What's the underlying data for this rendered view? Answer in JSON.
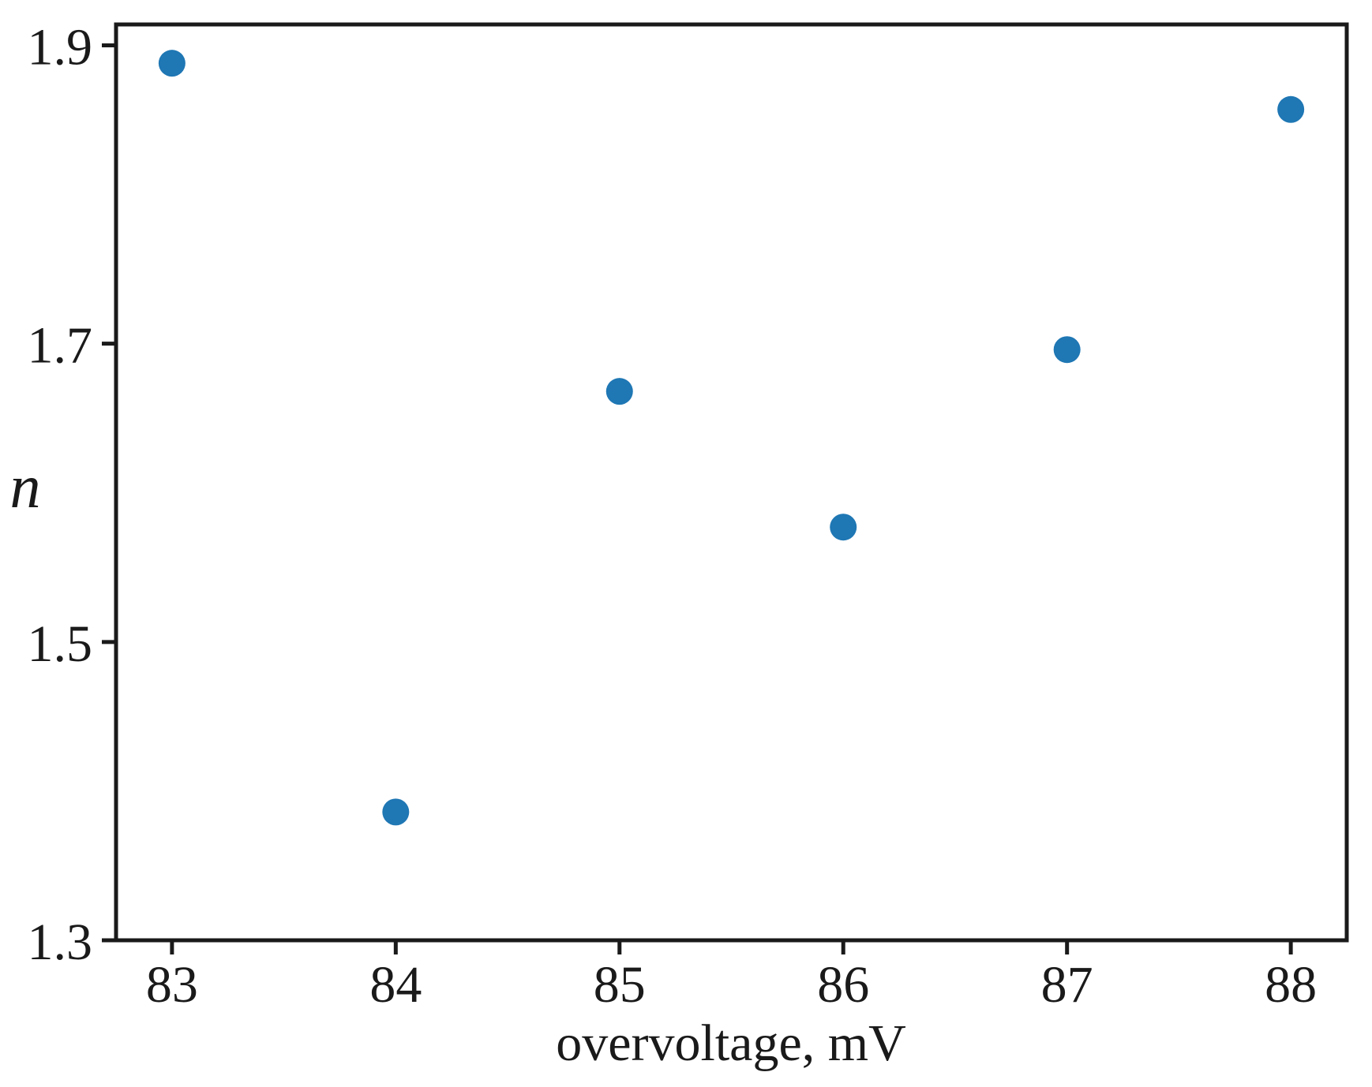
{
  "chart_data": {
    "type": "scatter",
    "title": "",
    "x": [
      83,
      84,
      85,
      86,
      87,
      88
    ],
    "y": [
      1.888,
      1.386,
      1.668,
      1.577,
      1.696,
      1.857
    ],
    "x_axis": {
      "label": "overvoltage, mV",
      "tick_values": [
        83,
        84,
        85,
        86,
        87,
        88
      ],
      "tick_labels": [
        "83",
        "84",
        "85",
        "86",
        "87",
        "88"
      ],
      "range": [
        82.75,
        88.25
      ]
    },
    "y_axis": {
      "label": "n",
      "tick_values": [
        1.3,
        1.5,
        1.7,
        1.9
      ],
      "tick_labels": [
        "1.3",
        "1.5",
        "1.7",
        "1.9"
      ],
      "range": [
        1.3,
        1.914
      ]
    },
    "grid": false,
    "legend": false,
    "marker": {
      "shape": "circle",
      "color": "#1f77b4",
      "radius_px": 17
    },
    "axis_color": "#1a1a1a"
  }
}
